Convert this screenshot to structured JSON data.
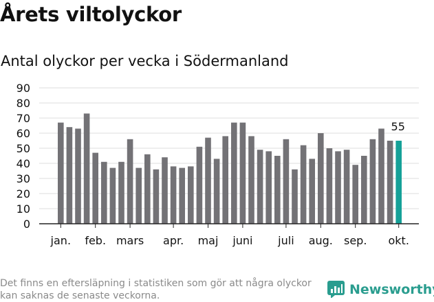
{
  "header": {
    "title": "Årets viltolyckor",
    "subtitle": "Antal olyckor per vecka i Södermanland"
  },
  "chart_data": {
    "type": "bar",
    "title": "Antal olyckor per vecka i Södermanland",
    "xlabel": "",
    "ylabel": "",
    "ylim": [
      0,
      90
    ],
    "yticks": [
      0,
      10,
      20,
      30,
      40,
      50,
      60,
      70,
      80,
      90
    ],
    "grid": true,
    "values": [
      67,
      64,
      63,
      73,
      47,
      41,
      37,
      41,
      56,
      37,
      46,
      36,
      44,
      38,
      37,
      38,
      51,
      57,
      43,
      58,
      67,
      67,
      58,
      49,
      48,
      45,
      56,
      36,
      52,
      43,
      60,
      50,
      48,
      49,
      39,
      45,
      56,
      63,
      55,
      55
    ],
    "highlight_index": 39,
    "highlight_label": "55",
    "month_labels": [
      {
        "label": "jan.",
        "bar_index": 0
      },
      {
        "label": "feb.",
        "bar_index": 4
      },
      {
        "label": "mars",
        "bar_index": 8
      },
      {
        "label": "apr.",
        "bar_index": 13
      },
      {
        "label": "maj",
        "bar_index": 17
      },
      {
        "label": "juni",
        "bar_index": 21
      },
      {
        "label": "juli",
        "bar_index": 26
      },
      {
        "label": "aug.",
        "bar_index": 30
      },
      {
        "label": "sep.",
        "bar_index": 34
      },
      {
        "label": "okt.",
        "bar_index": 39
      }
    ]
  },
  "colors": {
    "bar": "#737276",
    "highlight": "#15a198",
    "grid": "#dddddd",
    "axis": "#222222",
    "text": "#111111",
    "brand": "#2a9d8f"
  },
  "footer": {
    "note": "Det finns en eftersläpning i statistiken som gör att några olyckor kan saknas de senaste veckorna.",
    "brand": "Newsworthy",
    "brand_icon": "bar-chart-logo-icon"
  }
}
